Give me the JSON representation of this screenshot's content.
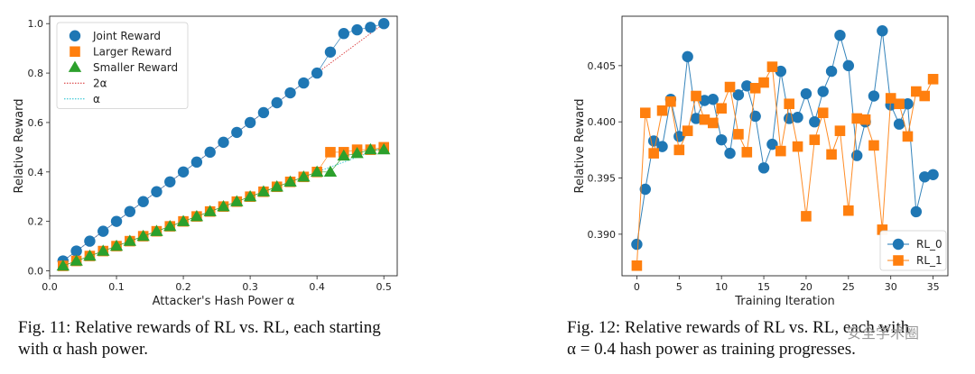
{
  "figures": [
    {
      "caption_line1": "Fig. 11: Relative rewards of RL vs. RL, each starting",
      "caption_line2": "with α hash power."
    },
    {
      "caption_line1": "Fig. 12: Relative rewards of RL vs. RL, each with",
      "caption_line2": "α = 0.4 hash power as training progresses."
    }
  ],
  "watermark": "安全学术圈",
  "chart_data": [
    {
      "type": "line",
      "title": "",
      "xlabel": "Attacker's Hash Power α",
      "ylabel": "Relative Reward",
      "xlim": [
        0.0,
        0.52
      ],
      "ylim": [
        -0.02,
        1.03
      ],
      "xticks": [
        0.0,
        0.1,
        0.2,
        0.3,
        0.4,
        0.5
      ],
      "xtick_labels": [
        "0.0",
        "0.1",
        "0.2",
        "0.3",
        "0.4",
        "0.5"
      ],
      "yticks": [
        0.0,
        0.2,
        0.4,
        0.6,
        0.8,
        1.0
      ],
      "ytick_labels": [
        "0.0",
        "0.2",
        "0.4",
        "0.6",
        "0.8",
        "1.0"
      ],
      "legend_position": "top-left",
      "x": [
        0.02,
        0.04,
        0.06,
        0.08,
        0.1,
        0.12,
        0.14,
        0.16,
        0.18,
        0.2,
        0.22,
        0.24,
        0.26,
        0.28,
        0.3,
        0.32,
        0.34,
        0.36,
        0.38,
        0.4,
        0.42,
        0.44,
        0.46,
        0.48,
        0.5
      ],
      "series": [
        {
          "name": "Joint Reward",
          "color": "#1f77b4",
          "marker": "circle",
          "values": [
            0.04,
            0.08,
            0.12,
            0.16,
            0.2,
            0.24,
            0.28,
            0.32,
            0.36,
            0.4,
            0.44,
            0.48,
            0.52,
            0.56,
            0.6,
            0.64,
            0.68,
            0.72,
            0.76,
            0.8,
            0.885,
            0.96,
            0.975,
            0.985,
            1.0
          ]
        },
        {
          "name": "Larger Reward",
          "color": "#ff7f0e",
          "marker": "square",
          "values": [
            0.02,
            0.04,
            0.06,
            0.08,
            0.1,
            0.12,
            0.14,
            0.16,
            0.18,
            0.2,
            0.22,
            0.24,
            0.26,
            0.28,
            0.3,
            0.32,
            0.34,
            0.36,
            0.38,
            0.4,
            0.48,
            0.48,
            0.49,
            0.49,
            0.5
          ]
        },
        {
          "name": "Smaller Reward",
          "color": "#2ca02c",
          "marker": "triangle",
          "values": [
            0.02,
            0.04,
            0.06,
            0.08,
            0.1,
            0.12,
            0.14,
            0.16,
            0.18,
            0.2,
            0.22,
            0.24,
            0.26,
            0.28,
            0.3,
            0.32,
            0.34,
            0.36,
            0.38,
            0.4,
            0.4,
            0.465,
            0.475,
            0.49,
            0.49
          ]
        }
      ],
      "reference_lines": [
        {
          "name": "2α",
          "color": "#d62728",
          "factor": 2
        },
        {
          "name": "α",
          "color": "#17becf",
          "factor": 1
        }
      ]
    },
    {
      "type": "line",
      "title": "",
      "xlabel": "Training Iteration",
      "ylabel": "Relative Reward",
      "xlim": [
        -1.75,
        36.75
      ],
      "ylim": [
        0.3863,
        0.4094
      ],
      "xticks": [
        0,
        5,
        10,
        15,
        20,
        25,
        30,
        35
      ],
      "xtick_labels": [
        "0",
        "5",
        "10",
        "15",
        "20",
        "25",
        "30",
        "35"
      ],
      "yticks": [
        0.39,
        0.395,
        0.4,
        0.405
      ],
      "ytick_labels": [
        "0.390",
        "0.395",
        "0.400",
        "0.405"
      ],
      "legend_position": "bottom-right",
      "x": [
        0,
        1,
        2,
        3,
        4,
        5,
        6,
        7,
        8,
        9,
        10,
        11,
        12,
        13,
        14,
        15,
        16,
        17,
        18,
        19,
        20,
        21,
        22,
        23,
        24,
        25,
        26,
        27,
        28,
        29,
        30,
        31,
        32,
        33,
        34,
        35
      ],
      "series": [
        {
          "name": "RL_0",
          "color": "#1f77b4",
          "marker": "circle",
          "values": [
            0.3891,
            0.394,
            0.3983,
            0.3978,
            0.402,
            0.3987,
            0.4058,
            0.4003,
            0.4019,
            0.402,
            0.3984,
            0.3972,
            0.4024,
            0.4032,
            0.4005,
            0.3959,
            0.398,
            0.4045,
            0.4003,
            0.4004,
            0.4025,
            0.4,
            0.4027,
            0.4045,
            0.4077,
            0.405,
            0.397,
            0.4,
            0.4023,
            0.4081,
            0.4015,
            0.3998,
            0.4016,
            0.392,
            0.3951,
            0.3953
          ]
        },
        {
          "name": "RL_1",
          "color": "#ff7f0e",
          "marker": "square",
          "values": [
            0.3872,
            0.4008,
            0.3972,
            0.401,
            0.4018,
            0.3975,
            0.3992,
            0.4023,
            0.4002,
            0.3999,
            0.4012,
            0.4031,
            0.3989,
            0.3973,
            0.403,
            0.4035,
            0.4049,
            0.3974,
            0.4016,
            0.3978,
            0.3916,
            0.3984,
            0.4008,
            0.3971,
            0.3992,
            0.3921,
            0.4003,
            0.4002,
            0.3979,
            0.3904,
            0.4021,
            0.4016,
            0.3987,
            0.4027,
            0.4023,
            0.4038
          ]
        }
      ]
    }
  ]
}
